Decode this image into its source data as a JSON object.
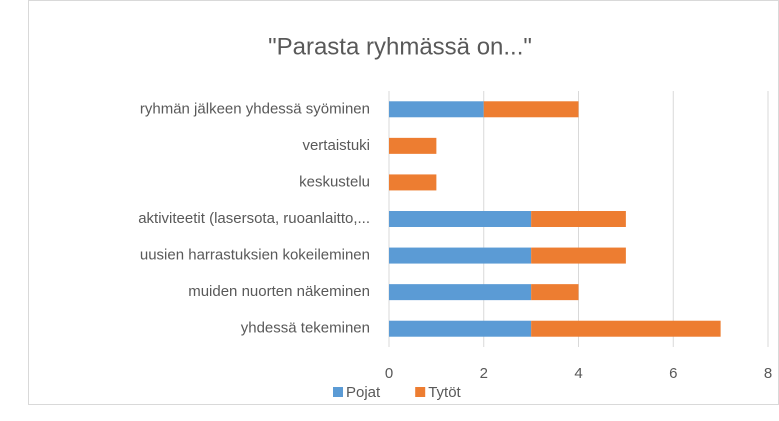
{
  "chart_data": {
    "type": "stacked_barh",
    "title": "\"Parasta ryhmässä on...\"",
    "categories": [
      "ryhmän jälkeen yhdessä syöminen",
      "vertaistuki",
      "keskustelu",
      "aktiviteetit (lasersota, ruoanlaitto,...",
      "uusien harrastuksien kokeileminen",
      "muiden nuorten näkeminen",
      "yhdessä tekeminen"
    ],
    "series": [
      {
        "name": "Pojat",
        "color": "#5b9bd5",
        "values": [
          2,
          0,
          0,
          3,
          3,
          3,
          3
        ]
      },
      {
        "name": "Tytöt",
        "color": "#ed7d31",
        "values": [
          2,
          1,
          1,
          2,
          2,
          1,
          4
        ]
      }
    ],
    "xlim": [
      0,
      8
    ],
    "xticks": [
      0,
      2,
      4,
      6,
      8
    ],
    "grid": true,
    "legend": "bottom"
  }
}
